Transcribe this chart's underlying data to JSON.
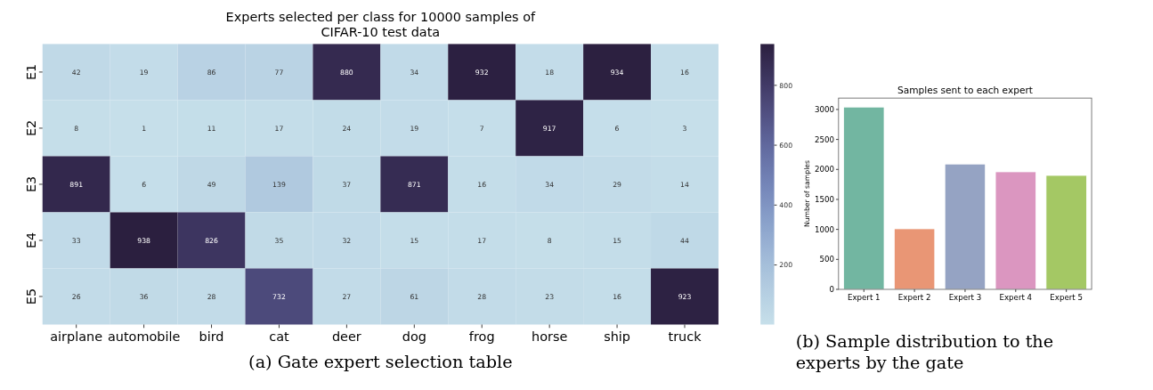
{
  "chart_data": [
    {
      "type": "heatmap",
      "title": "Experts selected per class for 10000 samples of CIFAR-10 test data",
      "categories": [
        "airplane",
        "automobile",
        "bird",
        "cat",
        "deer",
        "dog",
        "frog",
        "horse",
        "ship",
        "truck"
      ],
      "y_categories": [
        "E1",
        "E2",
        "E3",
        "E4",
        "E5"
      ],
      "cells": [
        [
          42,
          19,
          86,
          77,
          880,
          34,
          932,
          18,
          934,
          16
        ],
        [
          8,
          1,
          11,
          17,
          24,
          19,
          7,
          917,
          6,
          3
        ],
        [
          891,
          6,
          49,
          139,
          37,
          871,
          16,
          34,
          29,
          14
        ],
        [
          33,
          938,
          826,
          35,
          32,
          15,
          17,
          8,
          15,
          44
        ],
        [
          26,
          36,
          28,
          732,
          27,
          61,
          28,
          23,
          16,
          923
        ]
      ],
      "data_labels": true,
      "clim": [
        1,
        938
      ],
      "cticks": [
        200,
        400,
        600,
        800
      ],
      "annotations": [
        "(a) Gate expert selection table"
      ]
    },
    {
      "type": "bar",
      "title": "Samples sent to each expert",
      "categories": [
        "Expert 1",
        "Expert 2",
        "Expert 3",
        "Expert 4",
        "Expert 5"
      ],
      "values": [
        3040,
        1010,
        2090,
        1960,
        1900
      ],
      "colors": [
        "#72b6a1",
        "#e99675",
        "#95a3c3",
        "#db96c0",
        "#a4c864"
      ],
      "ylabel": "Number of samples",
      "ylim": [
        0,
        3190
      ],
      "yticks": [
        0,
        500,
        1000,
        1500,
        2000,
        2500,
        3000
      ],
      "grid": false,
      "annotations": [
        "(b) Sample distribution to the experts by the gate"
      ]
    }
  ]
}
